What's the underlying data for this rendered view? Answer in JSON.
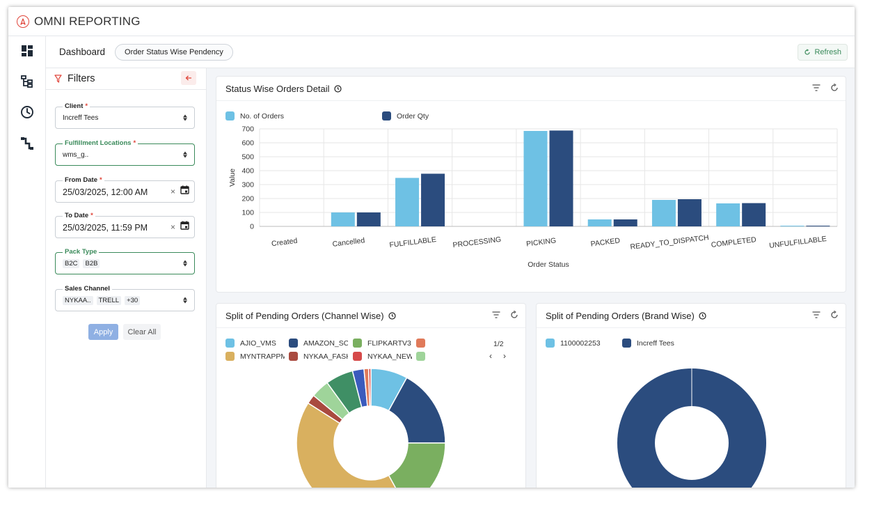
{
  "app": {
    "title": "OMNI REPORTING",
    "logo_icon": "compass-icon"
  },
  "rail": {
    "icons": [
      "dashboard-icon",
      "hierarchy-icon",
      "clock-icon",
      "flow-icon"
    ]
  },
  "subbar": {
    "breadcrumb": "Dashboard",
    "report_pill": "Order Status Wise Pendency",
    "refresh_label": "Refresh"
  },
  "filters": {
    "title": "Filters",
    "client": {
      "label": "Client",
      "value": "Increff Tees"
    },
    "fulfillment_locations": {
      "label": "Fulfillment Locations",
      "value": "wms_g.."
    },
    "from_date": {
      "label": "From Date",
      "value": "25/03/2025, 12:00  AM"
    },
    "to_date": {
      "label": "To Date",
      "value": "25/03/2025, 11:59  PM"
    },
    "pack_type": {
      "label": "Pack Type",
      "chips": [
        "B2C",
        "B2B"
      ]
    },
    "sales_channel": {
      "label": "Sales Channel",
      "chips": [
        "NYKAA..",
        "TRELL",
        "+30"
      ]
    },
    "apply_label": "Apply",
    "clear_label": "Clear All"
  },
  "status_card": {
    "title": "Status Wise Orders Detail"
  },
  "channel_card": {
    "title": "Split of Pending Orders (Channel Wise)",
    "page_indicator": "1/2"
  },
  "brand_card": {
    "title": "Split of Pending Orders (Brand Wise)"
  },
  "chart_data": [
    {
      "type": "bar",
      "title": "Status Wise Orders Detail",
      "xlabel": "Order Status",
      "ylabel": "Value",
      "ylim": [
        0,
        700
      ],
      "yticks": [
        0,
        100,
        200,
        300,
        400,
        500,
        600,
        700
      ],
      "grid": true,
      "legend_position": "top-left",
      "categories": [
        "Created",
        "Cancelled",
        "FULFILLABLE",
        "PROCESSING",
        "PICKING",
        "PACKED",
        "READY_TO_DISPATCH",
        "COMPLETED",
        "UNFULFILLABLE"
      ],
      "series": [
        {
          "name": "No. of Orders",
          "color": "#6ec1e4",
          "values": [
            0,
            100,
            348,
            0,
            685,
            50,
            190,
            165,
            2
          ]
        },
        {
          "name": "Order Qty",
          "color": "#2b4c7e",
          "values": [
            0,
            100,
            378,
            0,
            688,
            50,
            195,
            167,
            2
          ]
        }
      ]
    },
    {
      "type": "pie",
      "title": "Split of Pending Orders (Channel Wise)",
      "legend_position": "top",
      "legend_page": "1/2",
      "legend": [
        {
          "label": "AJIO_VMS",
          "color": "#6ec1e4"
        },
        {
          "label": "AMAZON_SC",
          "color": "#2b4c7e"
        },
        {
          "label": "FLIPKARTV3",
          "color": "#7aaf60"
        },
        {
          "label": "",
          "color": "#e07a5a"
        },
        {
          "label": "MYNTRAPPMP",
          "color": "#d9b05f"
        },
        {
          "label": "NYKAA_FASHION",
          "color": "#a94a3f"
        },
        {
          "label": "NYKAA_NEW",
          "color": "#d64a4a"
        },
        {
          "label": "",
          "color": "#9fd49a"
        }
      ],
      "slices": [
        {
          "label": "AJIO_VMS",
          "value": 8,
          "color": "#6ec1e4"
        },
        {
          "label": "AMAZON_SC",
          "value": 17,
          "color": "#2b4c7e"
        },
        {
          "label": "FLIPKARTV3",
          "value": 17,
          "color": "#7aaf60"
        },
        {
          "label": "MYNTRAPPMP",
          "value": 42,
          "color": "#d9b05f"
        },
        {
          "label": "NYKAA_FASHION",
          "value": 2,
          "color": "#a94a3f"
        },
        {
          "label": "",
          "value": 4,
          "color": "#9fd49a"
        },
        {
          "label": "",
          "value": 6,
          "color": "#3f8f65"
        },
        {
          "label": "",
          "value": 2.5,
          "color": "#3b5bbd"
        },
        {
          "label": "",
          "value": 1,
          "color": "#e07a5a"
        },
        {
          "label": "NYKAA_NEW",
          "value": 0.5,
          "color": "#d64a4a"
        }
      ]
    },
    {
      "type": "pie",
      "title": "Split of Pending Orders (Brand Wise)",
      "legend_position": "top",
      "slices": [
        {
          "label": "1100002253",
          "value": 0,
          "color": "#6ec1e4"
        },
        {
          "label": "Increff Tees",
          "value": 100,
          "color": "#2b4c7e"
        }
      ]
    }
  ]
}
